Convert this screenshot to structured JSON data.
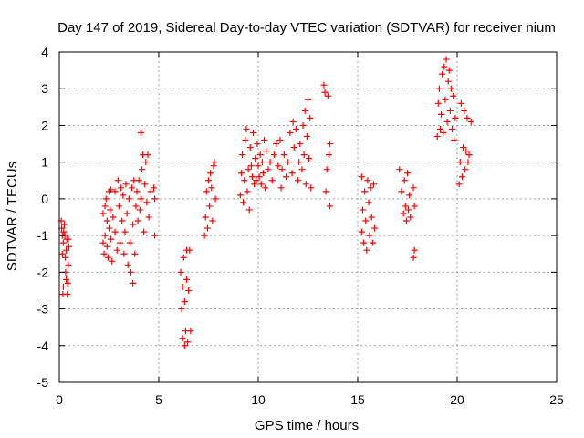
{
  "chart_data": {
    "type": "scatter",
    "title": "Day 147 of 2019, Sidereal Day-to-day VTEC variation (SDTVAR) for receiver nium",
    "xlabel": "GPS time / hours",
    "ylabel": "SDTVAR / TECUs",
    "xlim": [
      0,
      25
    ],
    "ylim": [
      -5,
      4
    ],
    "xticks": [
      0,
      5,
      10,
      15,
      20,
      25
    ],
    "yticks": [
      -5,
      -4,
      -3,
      -2,
      -1,
      0,
      1,
      2,
      3,
      4
    ],
    "xtick_labels": [
      "0",
      "5",
      "10",
      "15",
      "20",
      "25"
    ],
    "ytick_labels": [
      "-5",
      "-4",
      "-3",
      "-2",
      "-1",
      "0",
      "1",
      "2",
      "3",
      "4"
    ],
    "grid": true,
    "marker": "+",
    "series": [
      {
        "name": "SDTVAR",
        "color": "#ff0000",
        "points": [
          [
            0.1,
            -0.6
          ],
          [
            0.12,
            -0.8
          ],
          [
            0.15,
            -1.0
          ],
          [
            0.15,
            -1.5
          ],
          [
            0.18,
            -2.6
          ],
          [
            0.2,
            -2.4
          ],
          [
            0.2,
            -1.2
          ],
          [
            0.22,
            -0.9
          ],
          [
            0.25,
            -0.7
          ],
          [
            0.28,
            -1.0
          ],
          [
            0.3,
            -1.6
          ],
          [
            0.32,
            -2.0
          ],
          [
            0.35,
            -2.2
          ],
          [
            0.35,
            -1.4
          ],
          [
            0.38,
            -1.1
          ],
          [
            0.4,
            -2.6
          ],
          [
            0.42,
            -2.3
          ],
          [
            0.45,
            -1.8
          ],
          [
            0.45,
            -1.1
          ],
          [
            0.48,
            -1.3
          ],
          [
            2.2,
            -0.4
          ],
          [
            2.2,
            -1.2
          ],
          [
            2.25,
            -1.5
          ],
          [
            2.3,
            -1.0
          ],
          [
            2.3,
            -0.2
          ],
          [
            2.35,
            0.0
          ],
          [
            2.4,
            -0.6
          ],
          [
            2.4,
            -1.3
          ],
          [
            2.45,
            -1.6
          ],
          [
            2.5,
            -0.8
          ],
          [
            2.5,
            0.2
          ],
          [
            2.55,
            -0.3
          ],
          [
            2.6,
            -1.1
          ],
          [
            2.6,
            0.25
          ],
          [
            2.65,
            -1.7
          ],
          [
            2.7,
            -0.5
          ],
          [
            2.8,
            0.2
          ],
          [
            2.8,
            -0.9
          ],
          [
            2.9,
            -1.4
          ],
          [
            2.95,
            0.5
          ],
          [
            3.0,
            -0.2
          ],
          [
            3.05,
            -1.2
          ],
          [
            3.1,
            0.3
          ],
          [
            3.15,
            -0.6
          ],
          [
            3.2,
            0.1
          ],
          [
            3.25,
            -1.5
          ],
          [
            3.3,
            -0.9
          ],
          [
            3.35,
            0.4
          ],
          [
            3.4,
            -0.4
          ],
          [
            3.45,
            -1.8
          ],
          [
            3.5,
            0.0
          ],
          [
            3.55,
            -1.2
          ],
          [
            3.6,
            -2.0
          ],
          [
            3.65,
            0.3
          ],
          [
            3.7,
            -0.7
          ],
          [
            3.7,
            -2.3
          ],
          [
            3.75,
            0.5
          ],
          [
            3.8,
            -1.5
          ],
          [
            3.85,
            -0.2
          ],
          [
            3.9,
            0.2
          ],
          [
            3.95,
            -0.6
          ],
          [
            4.0,
            0.5
          ],
          [
            4.05,
            -0.3
          ],
          [
            4.1,
            0.0
          ],
          [
            4.1,
            1.8
          ],
          [
            4.15,
            0.8
          ],
          [
            4.2,
            1.2
          ],
          [
            4.25,
            -0.9
          ],
          [
            4.3,
            0.4
          ],
          [
            4.35,
            1.0
          ],
          [
            4.4,
            -0.1
          ],
          [
            4.45,
            1.2
          ],
          [
            4.5,
            -0.5
          ],
          [
            4.6,
            0.2
          ],
          [
            4.75,
            0.3
          ],
          [
            4.8,
            0.0
          ],
          [
            4.8,
            -1.0
          ],
          [
            6.1,
            -2.0
          ],
          [
            6.15,
            -3.0
          ],
          [
            6.2,
            -2.4
          ],
          [
            6.2,
            -3.8
          ],
          [
            6.25,
            -1.6
          ],
          [
            6.3,
            -4.0
          ],
          [
            6.3,
            -2.8
          ],
          [
            6.35,
            -3.6
          ],
          [
            6.4,
            -2.2
          ],
          [
            6.4,
            -1.4
          ],
          [
            6.45,
            -3.9
          ],
          [
            6.5,
            -2.5
          ],
          [
            6.55,
            -1.4
          ],
          [
            6.6,
            -3.6
          ],
          [
            7.3,
            -1.0
          ],
          [
            7.35,
            -0.5
          ],
          [
            7.4,
            0.2
          ],
          [
            7.45,
            -0.8
          ],
          [
            7.5,
            0.5
          ],
          [
            7.55,
            -0.2
          ],
          [
            7.6,
            0.7
          ],
          [
            7.65,
            0.3
          ],
          [
            7.7,
            -0.6
          ],
          [
            7.75,
            0.9
          ],
          [
            7.8,
            1.0
          ],
          [
            7.85,
            0.0
          ],
          [
            9.1,
            0.1
          ],
          [
            9.15,
            0.7
          ],
          [
            9.2,
            1.2
          ],
          [
            9.25,
            -0.1
          ],
          [
            9.3,
            0.5
          ],
          [
            9.35,
            1.6
          ],
          [
            9.4,
            1.9
          ],
          [
            9.45,
            0.2
          ],
          [
            9.5,
            0.8
          ],
          [
            9.55,
            -0.3
          ],
          [
            9.6,
            1.4
          ],
          [
            9.65,
            0.9
          ],
          [
            9.7,
            0.6
          ],
          [
            9.75,
            1.8
          ],
          [
            9.8,
            0.4
          ],
          [
            9.85,
            1.1
          ],
          [
            9.9,
            0.5
          ],
          [
            9.95,
            1.5
          ],
          [
            10.0,
            0.9
          ],
          [
            10.05,
            0.6
          ],
          [
            10.1,
            1.2
          ],
          [
            10.15,
            0.4
          ],
          [
            10.2,
            1.0
          ],
          [
            10.25,
            0.7
          ],
          [
            10.3,
            1.6
          ],
          [
            10.35,
            0.3
          ],
          [
            10.4,
            1.3
          ],
          [
            10.5,
            0.8
          ],
          [
            10.6,
            1.0
          ],
          [
            10.7,
            0.5
          ],
          [
            10.8,
            1.2
          ],
          [
            10.9,
            1.5
          ],
          [
            11.0,
            0.9
          ],
          [
            11.1,
            1.6
          ],
          [
            11.15,
            0.3
          ],
          [
            11.2,
            0.8
          ],
          [
            11.3,
            1.2
          ],
          [
            11.4,
            0.6
          ],
          [
            11.5,
            1.0
          ],
          [
            11.6,
            1.8
          ],
          [
            11.7,
            0.7
          ],
          [
            11.75,
            2.1
          ],
          [
            11.8,
            1.4
          ],
          [
            11.9,
            1.9
          ],
          [
            12.0,
            0.5
          ],
          [
            12.05,
            1.0
          ],
          [
            12.1,
            1.5
          ],
          [
            12.2,
            0.8
          ],
          [
            12.25,
            2.0
          ],
          [
            12.3,
            1.2
          ],
          [
            12.35,
            2.4
          ],
          [
            12.4,
            0.4
          ],
          [
            12.45,
            1.7
          ],
          [
            12.5,
            2.7
          ],
          [
            12.55,
            1.1
          ],
          [
            12.6,
            2.2
          ],
          [
            12.65,
            0.3
          ],
          [
            13.3,
            3.1
          ],
          [
            13.35,
            2.9
          ],
          [
            13.4,
            0.2
          ],
          [
            13.45,
            0.8
          ],
          [
            13.5,
            2.8
          ],
          [
            13.55,
            1.2
          ],
          [
            13.6,
            -0.2
          ],
          [
            13.6,
            1.5
          ],
          [
            15.2,
            0.6
          ],
          [
            15.2,
            -0.9
          ],
          [
            15.25,
            -0.3
          ],
          [
            15.3,
            -1.2
          ],
          [
            15.35,
            0.2
          ],
          [
            15.4,
            -0.6
          ],
          [
            15.45,
            -1.4
          ],
          [
            15.5,
            0.5
          ],
          [
            15.55,
            -0.1
          ],
          [
            15.6,
            -1.0
          ],
          [
            15.65,
            0.3
          ],
          [
            15.7,
            -0.5
          ],
          [
            15.75,
            -1.2
          ],
          [
            15.8,
            0.4
          ],
          [
            15.85,
            -0.8
          ],
          [
            17.1,
            0.8
          ],
          [
            17.2,
            0.2
          ],
          [
            17.3,
            -0.4
          ],
          [
            17.35,
            0.5
          ],
          [
            17.4,
            -0.2
          ],
          [
            17.45,
            -0.6
          ],
          [
            17.5,
            0.7
          ],
          [
            17.55,
            -0.3
          ],
          [
            17.6,
            0.1
          ],
          [
            17.65,
            -0.5
          ],
          [
            17.8,
            0.3
          ],
          [
            17.85,
            -0.2
          ],
          [
            17.85,
            -1.4
          ],
          [
            17.8,
            -1.6
          ],
          [
            19.0,
            1.7
          ],
          [
            19.05,
            2.6
          ],
          [
            19.1,
            3.0
          ],
          [
            19.15,
            1.9
          ],
          [
            19.2,
            2.3
          ],
          [
            19.25,
            3.4
          ],
          [
            19.3,
            1.8
          ],
          [
            19.35,
            3.6
          ],
          [
            19.4,
            2.7
          ],
          [
            19.45,
            3.8
          ],
          [
            19.5,
            2.1
          ],
          [
            19.55,
            3.2
          ],
          [
            19.6,
            3.5
          ],
          [
            19.65,
            2.4
          ],
          [
            19.7,
            3.0
          ],
          [
            19.75,
            1.9
          ],
          [
            19.8,
            2.8
          ],
          [
            19.85,
            1.6
          ],
          [
            19.9,
            2.2
          ],
          [
            20.1,
            0.4
          ],
          [
            20.15,
            1.0
          ],
          [
            20.2,
            2.6
          ],
          [
            20.25,
            0.6
          ],
          [
            20.3,
            1.4
          ],
          [
            20.35,
            2.4
          ],
          [
            20.4,
            0.8
          ],
          [
            20.45,
            1.3
          ],
          [
            20.5,
            2.2
          ],
          [
            20.55,
            1.0
          ],
          [
            20.6,
            1.2
          ],
          [
            20.7,
            2.1
          ]
        ]
      }
    ]
  }
}
